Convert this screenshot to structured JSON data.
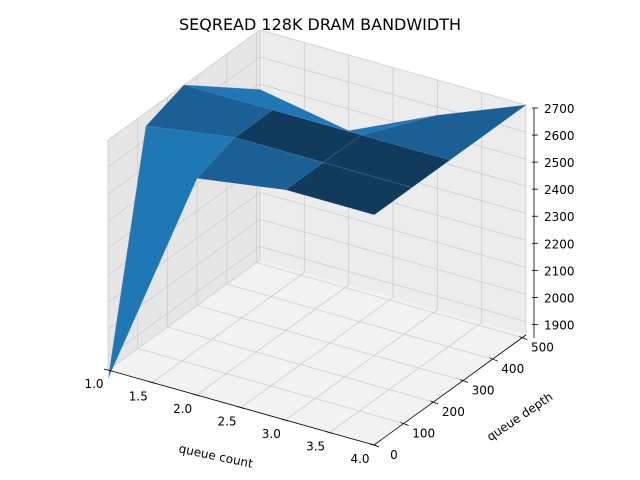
{
  "chart_data": {
    "type": "surface3d",
    "title": "SEQREAD 128K DRAM BANDWIDTH",
    "xlabel": "queue count",
    "ylabel": "queue depth",
    "zlabel": "",
    "x": [
      1,
      2,
      3,
      4
    ],
    "y": [
      1,
      128,
      256,
      512
    ],
    "z": [
      [
        1820,
        2650,
        2700,
        2700
      ],
      [
        2650,
        2700,
        2700,
        2700
      ],
      [
        2700,
        2700,
        2700,
        2700
      ],
      [
        2480,
        2420,
        2570,
        2700
      ]
    ],
    "xlim": [
      1.0,
      4.0
    ],
    "ylim": [
      0,
      512
    ],
    "zlim": [
      1850,
      2700
    ],
    "x_ticks": [
      "1.0",
      "1.5",
      "2.0",
      "2.5",
      "3.0",
      "3.5",
      "4.0"
    ],
    "y_ticks": [
      "0",
      "100",
      "200",
      "300",
      "400",
      "500"
    ],
    "z_ticks": [
      "1900",
      "2000",
      "2100",
      "2200",
      "2300",
      "2400",
      "2500",
      "2600",
      "2700"
    ],
    "grid": true,
    "colors": {
      "surface": "#1f77b4",
      "pane": "#f2f2f2",
      "grid": "#cccccc"
    }
  }
}
